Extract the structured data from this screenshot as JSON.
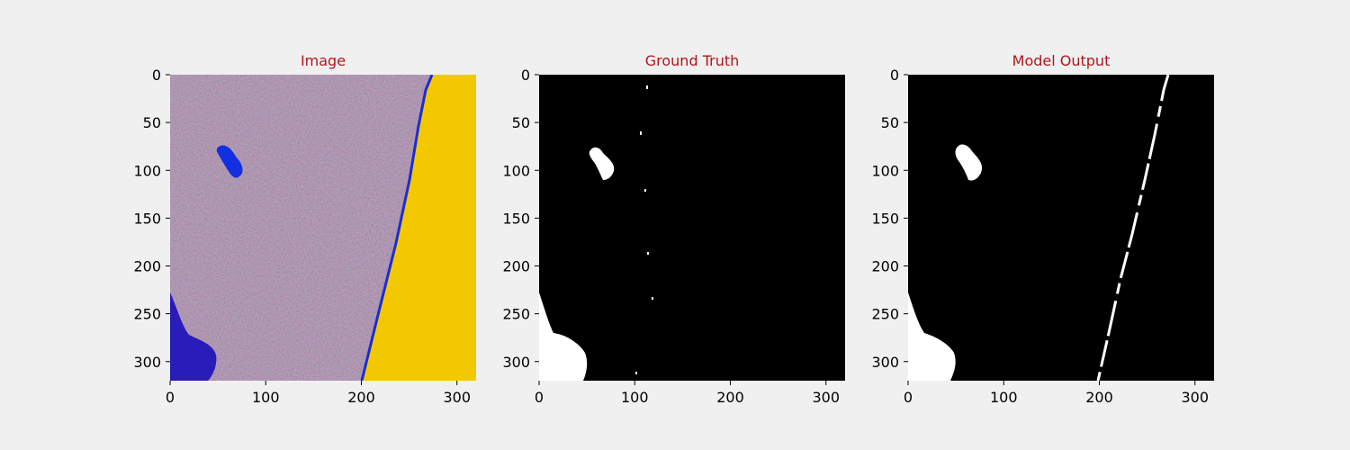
{
  "chart_data": [
    {
      "type": "image",
      "title": "Image",
      "title_color": "#b3141a",
      "xlim": [
        0,
        320
      ],
      "ylim": [
        320,
        0
      ],
      "x_ticks": [
        0,
        100,
        200,
        300
      ],
      "y_ticks": [
        0,
        50,
        100,
        150,
        200,
        250,
        300
      ],
      "grid": false,
      "colors": {
        "land": "#a58a8c",
        "water": "#1a2cd6",
        "fill": "#f2c900"
      }
    },
    {
      "type": "image",
      "title": "Ground Truth",
      "title_color": "#b3141a",
      "xlim": [
        0,
        320
      ],
      "ylim": [
        320,
        0
      ],
      "x_ticks": [
        0,
        100,
        200,
        300
      ],
      "y_ticks": [
        0,
        50,
        100,
        150,
        200,
        250,
        300
      ],
      "grid": false,
      "colors": {
        "background": "#000000",
        "mask": "#ffffff"
      }
    },
    {
      "type": "image",
      "title": "Model Output",
      "title_color": "#b3141a",
      "xlim": [
        0,
        320
      ],
      "ylim": [
        320,
        0
      ],
      "x_ticks": [
        0,
        100,
        200,
        300
      ],
      "y_ticks": [
        0,
        50,
        100,
        150,
        200,
        250,
        300
      ],
      "grid": false,
      "colors": {
        "background": "#000000",
        "mask": "#ffffff"
      }
    }
  ]
}
